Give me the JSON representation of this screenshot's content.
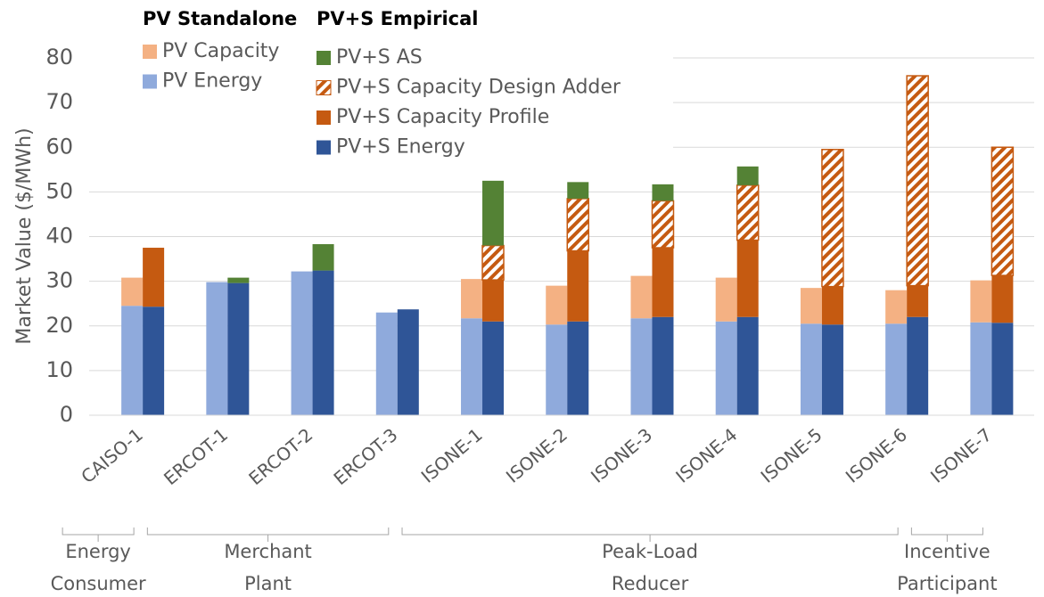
{
  "chart_data": {
    "type": "grouped-stacked-bar",
    "y_label": "Market Value ($/MWh)",
    "ylim": [
      0,
      80
    ],
    "yticks": [
      0,
      10,
      20,
      30,
      40,
      50,
      60,
      70,
      80
    ],
    "grid": true,
    "categories": [
      "CAISO-1",
      "ERCOT-1",
      "ERCOT-2",
      "ERCOT-3",
      "ISONE-1",
      "ISONE-2",
      "ISONE-3",
      "ISONE-4",
      "ISONE-5",
      "ISONE-6",
      "ISONE-7"
    ],
    "stacks": [
      {
        "name": "PV Standalone",
        "series": [
          {
            "name": "PV Energy",
            "color": "#8faadc",
            "values": [
              24.5,
              29.8,
              32.2,
              23,
              21.7,
              20.3,
              21.7,
              21,
              20.5,
              20.5,
              20.8
            ]
          },
          {
            "name": "PV Capacity",
            "color": "#f4b183",
            "values": [
              6.3,
              0,
              0,
              0,
              8.8,
              8.7,
              9.5,
              9.8,
              8,
              7.5,
              9.4
            ]
          }
        ]
      },
      {
        "name": "PV+S Empirical",
        "series": [
          {
            "name": "PV+S Energy",
            "color": "#2f5597",
            "values": [
              24.3,
              29.6,
              32.4,
              23.7,
              21,
              21,
              22,
              22,
              20.3,
              22,
              20.7
            ]
          },
          {
            "name": "PV+S Capacity Profile",
            "color": "#c55a11",
            "values": [
              13.2,
              0,
              0,
              0,
              9.3,
              15.8,
              15.5,
              17.2,
              8.5,
              7,
              10.6
            ]
          },
          {
            "name": "PV+S Capacity Design Adder",
            "color": "#c55a11",
            "pattern": "hatch",
            "values": [
              0,
              0,
              0,
              0,
              7.7,
              11.7,
              10.5,
              12.3,
              30.7,
              47,
              28.7
            ]
          },
          {
            "name": "PV+S AS",
            "color": "#548235",
            "values": [
              0,
              1.2,
              5.9,
              0,
              14.5,
              3.7,
              3.7,
              4.2,
              0,
              0,
              0
            ]
          }
        ]
      }
    ],
    "category_groups": [
      {
        "label": [
          "Energy",
          "Consumer"
        ],
        "span": [
          0,
          0
        ]
      },
      {
        "label": [
          "Merchant",
          "Plant"
        ],
        "span": [
          1,
          3
        ]
      },
      {
        "label": [
          "Peak-Load",
          "Reducer"
        ],
        "span": [
          4,
          9
        ]
      },
      {
        "label": [
          "Incentive",
          "Participant"
        ],
        "span": [
          10,
          10
        ]
      }
    ]
  }
}
